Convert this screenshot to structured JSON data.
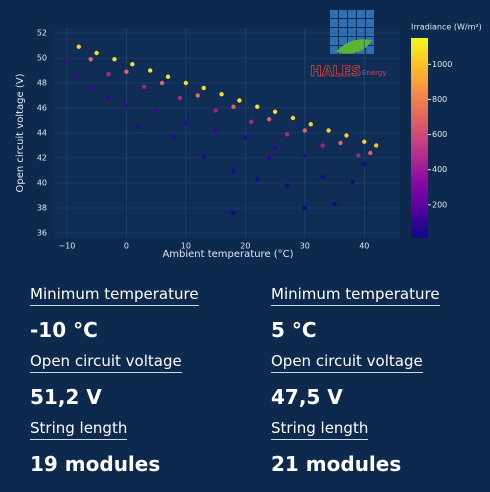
{
  "chart_data": {
    "type": "scatter",
    "x_label": "Ambient temperature (°C)",
    "y_label": "Open circuit voltage (V)",
    "colorbar_title": "Irradiance (W/m²)",
    "colorscale": [
      "#0d0887",
      "#5302a3",
      "#8b0aa5",
      "#b83289",
      "#db5c68",
      "#f48849",
      "#febc2a",
      "#f0f921"
    ],
    "clim": [
      11,
      1150
    ],
    "cticks": [
      200,
      400,
      600,
      800,
      1000
    ],
    "xlim": [
      -12,
      46
    ],
    "xticks": [
      {
        "value": -10,
        "label": "−10"
      },
      0,
      10,
      20,
      30,
      40
    ],
    "ylim": [
      35.6,
      52.4
    ],
    "yticks": [
      36,
      38,
      40,
      42,
      44,
      46,
      48,
      50,
      52
    ],
    "grid": true,
    "series": [
      {
        "x": [
          -8,
          -5,
          -2,
          1,
          4,
          7,
          10,
          13,
          16,
          19,
          22,
          25,
          28,
          31,
          34,
          37,
          40,
          42,
          -6,
          0,
          6,
          12,
          18,
          24,
          30,
          36,
          41,
          -3,
          3,
          9,
          15,
          21,
          27,
          33,
          39,
          -10,
          -8,
          -6,
          -3,
          0,
          2,
          5,
          8,
          10,
          13,
          15,
          18,
          20,
          22,
          25,
          27,
          30,
          33,
          35,
          38,
          40,
          30,
          18,
          24
        ],
        "y": [
          50.9,
          50.4,
          49.9,
          49.5,
          49.0,
          48.5,
          48.0,
          47.6,
          47.1,
          46.6,
          46.1,
          45.7,
          45.2,
          44.7,
          44.2,
          43.8,
          43.3,
          43.0,
          49.9,
          48.9,
          48.0,
          47.0,
          46.1,
          45.1,
          44.2,
          43.2,
          42.4,
          48.7,
          47.7,
          46.8,
          45.8,
          44.9,
          43.9,
          43.0,
          42.2,
          49.8,
          48.5,
          47.6,
          46.9,
          46.2,
          44.5,
          45.8,
          43.6,
          44.8,
          42.1,
          44.2,
          41.0,
          43.6,
          40.3,
          42.8,
          39.8,
          42.2,
          40.5,
          38.3,
          40.1,
          41.5,
          38.0,
          37.6,
          42.0
        ],
        "irradiance": [
          1050,
          1060,
          1070,
          1080,
          1090,
          1100,
          1080,
          1070,
          1060,
          1080,
          1090,
          1070,
          1060,
          1050,
          1040,
          1030,
          1020,
          1000,
          720,
          700,
          690,
          710,
          700,
          680,
          690,
          700,
          680,
          450,
          440,
          460,
          430,
          450,
          440,
          420,
          430,
          150,
          130,
          120,
          110,
          100,
          80,
          120,
          70,
          110,
          60,
          100,
          50,
          90,
          40,
          80,
          40,
          90,
          50,
          30,
          45,
          70,
          30,
          25,
          80
        ]
      }
    ]
  },
  "logo": {
    "name": "HALES",
    "tagline": "Energy"
  },
  "cards": [
    {
      "label": "Minimum temperature",
      "value": "-10 °C"
    },
    {
      "label": "Minimum temperature",
      "value": "5 °C"
    },
    {
      "label": "Open circuit voltage",
      "value": "51,2 V"
    },
    {
      "label": "Open circuit voltage",
      "value": "47,5 V"
    },
    {
      "label": "String length",
      "value": "19 modules"
    },
    {
      "label": "String length",
      "value": "21 modules"
    }
  ]
}
